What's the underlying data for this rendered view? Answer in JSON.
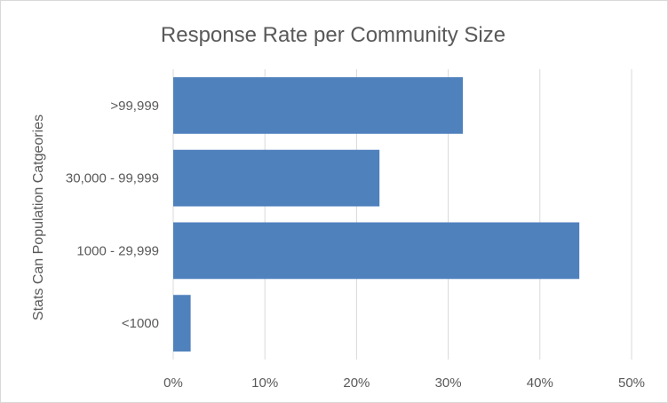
{
  "chart_data": {
    "type": "bar",
    "orientation": "horizontal",
    "title": "Response Rate per Community Size",
    "xlabel": "",
    "ylabel": "Stats Can Population Catgeories",
    "categories": [
      ">99,999",
      "30,000 - 99,999",
      "1000 - 29,999",
      "<1000"
    ],
    "values": [
      0.316,
      0.225,
      0.443,
      0.019
    ],
    "xlim": [
      0,
      0.5
    ],
    "xticks": [
      0,
      0.1,
      0.2,
      0.3,
      0.4,
      0.5
    ],
    "xtick_labels": [
      "0%",
      "10%",
      "20%",
      "30%",
      "40%",
      "50%"
    ],
    "bar_color": "#4f81bd",
    "grid": "vertical",
    "legend": "none"
  }
}
